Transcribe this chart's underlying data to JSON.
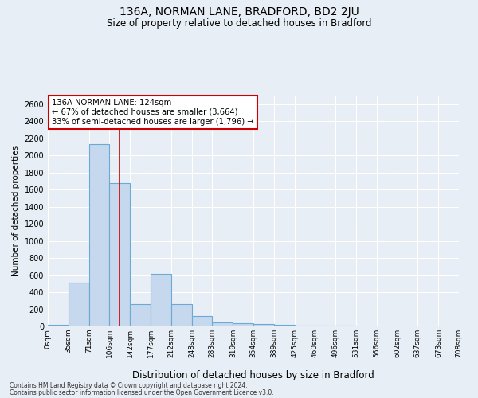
{
  "title_line1": "136A, NORMAN LANE, BRADFORD, BD2 2JU",
  "title_line2": "Size of property relative to detached houses in Bradford",
  "xlabel": "Distribution of detached houses by size in Bradford",
  "ylabel": "Number of detached properties",
  "footnote1": "Contains HM Land Registry data © Crown copyright and database right 2024.",
  "footnote2": "Contains public sector information licensed under the Open Government Licence v3.0.",
  "annotation_line1": "136A NORMAN LANE: 124sqm",
  "annotation_line2": "← 67% of detached houses are smaller (3,664)",
  "annotation_line3": "33% of semi-detached houses are larger (1,796) →",
  "bar_color": "#c5d8ed",
  "bar_edge_color": "#6aaad4",
  "vline_color": "#cc0000",
  "vline_x": 124,
  "bin_edges": [
    0,
    35,
    71,
    106,
    142,
    177,
    212,
    248,
    283,
    319,
    354,
    389,
    425,
    460,
    496,
    531,
    566,
    602,
    637,
    673,
    708
  ],
  "bar_heights": [
    20,
    510,
    2130,
    1680,
    260,
    610,
    260,
    120,
    50,
    40,
    25,
    20,
    5,
    5,
    5,
    2,
    2,
    2,
    2,
    1
  ],
  "ylim": [
    0,
    2700
  ],
  "yticks": [
    0,
    200,
    400,
    600,
    800,
    1000,
    1200,
    1400,
    1600,
    1800,
    2000,
    2200,
    2400,
    2600
  ],
  "background_color": "#e8eef5",
  "grid_color": "#ffffff",
  "annotation_box_color": "#ffffff",
  "annotation_box_edge": "#cc0000"
}
